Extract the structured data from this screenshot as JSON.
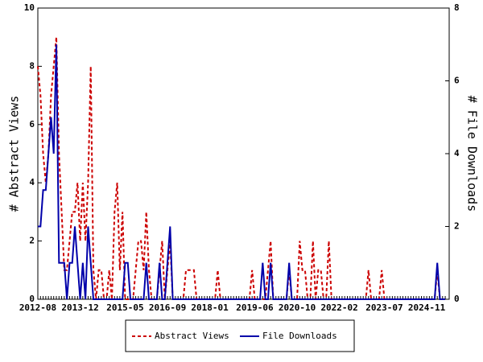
{
  "chart_data": {
    "type": "line",
    "ylabel": "# Abstract Views",
    "y2label": "# File Downloads",
    "categories": [
      "2012-08",
      null,
      null,
      null,
      null,
      null,
      null,
      null,
      null,
      null,
      null,
      null,
      null,
      null,
      null,
      null,
      "2013-12",
      null,
      null,
      null,
      null,
      null,
      null,
      null,
      null,
      null,
      null,
      null,
      null,
      null,
      null,
      null,
      null,
      "2015-05",
      null,
      null,
      null,
      null,
      null,
      null,
      null,
      null,
      null,
      null,
      null,
      null,
      null,
      null,
      null,
      "2016-09",
      null,
      null,
      null,
      null,
      null,
      null,
      null,
      null,
      null,
      null,
      null,
      null,
      null,
      null,
      null,
      "2018-01",
      null,
      null,
      null,
      null,
      null,
      null,
      null,
      null,
      null,
      null,
      null,
      null,
      null,
      null,
      null,
      null,
      "2019-06",
      null,
      null,
      null,
      null,
      null,
      null,
      null,
      null,
      null,
      null,
      null,
      null,
      null,
      null,
      null,
      "2020-10",
      null,
      null,
      null,
      null,
      null,
      null,
      null,
      null,
      null,
      null,
      null,
      null,
      null,
      null,
      null,
      "2022-02",
      null,
      null,
      null,
      null,
      null,
      null,
      null,
      null,
      null,
      null,
      null,
      null,
      null,
      null,
      null,
      null,
      "2023-07",
      null,
      null,
      null,
      null,
      null,
      null,
      null,
      null,
      null,
      null,
      null,
      null,
      null,
      null,
      null,
      "2024-11",
      null,
      null,
      null,
      null,
      null,
      null,
      null
    ],
    "series": [
      {
        "name": "Abstract Views",
        "color": "#cc0000",
        "dashed": true,
        "values": [
          8,
          7,
          5,
          4,
          5,
          7,
          8,
          9,
          5,
          3,
          1,
          1,
          2,
          3,
          3,
          4,
          2,
          4,
          2,
          4,
          8,
          1,
          0,
          1,
          1,
          0,
          0,
          1,
          0,
          3,
          4,
          1,
          3,
          0,
          0,
          0,
          0,
          1,
          2,
          2,
          1,
          3,
          1,
          0,
          0,
          0,
          1,
          2,
          0,
          1,
          2,
          0,
          0,
          0,
          0,
          0,
          1,
          1,
          1,
          1,
          0,
          0,
          0,
          0,
          0,
          0,
          0,
          0,
          1,
          0,
          0,
          0,
          0,
          0,
          0,
          0,
          0,
          0,
          0,
          0,
          0,
          1,
          0,
          0,
          0,
          0,
          0,
          1,
          2,
          0,
          0,
          0,
          0,
          0,
          0,
          1,
          0,
          0,
          0,
          2,
          1,
          1,
          0,
          0,
          2,
          0,
          1,
          1,
          0,
          0,
          2,
          0,
          0,
          0,
          0,
          0,
          0,
          0,
          0,
          0,
          0,
          0,
          0,
          0,
          0,
          1,
          0,
          0,
          0,
          0,
          1,
          0,
          0,
          0,
          0,
          0,
          0,
          0,
          0,
          0,
          0,
          0,
          0,
          0,
          0,
          0,
          0,
          0,
          0,
          0,
          0,
          1,
          0,
          0,
          0
        ]
      },
      {
        "name": "File Downloads",
        "color": "#0000aa",
        "dashed": false,
        "axis": "y2",
        "values": [
          2,
          2,
          3,
          3,
          4,
          5,
          4,
          7,
          1,
          1,
          1,
          0,
          1,
          1,
          2,
          1,
          0,
          1,
          0,
          2,
          1,
          0,
          0,
          0,
          0,
          0,
          0,
          0,
          0,
          0,
          0,
          0,
          0,
          1,
          1,
          0,
          0,
          0,
          0,
          0,
          0,
          1,
          0,
          0,
          0,
          0,
          1,
          0,
          0,
          1,
          2,
          0,
          0,
          0,
          0,
          0,
          0,
          0,
          0,
          0,
          0,
          0,
          0,
          0,
          0,
          0,
          0,
          0,
          0,
          0,
          0,
          0,
          0,
          0,
          0,
          0,
          0,
          0,
          0,
          0,
          0,
          0,
          0,
          0,
          0,
          1,
          0,
          0,
          1,
          0,
          0,
          0,
          0,
          0,
          0,
          1,
          0,
          0,
          0,
          0,
          0,
          0,
          0,
          0,
          0,
          0,
          0,
          0,
          0,
          0,
          0,
          0,
          0,
          0,
          0,
          0,
          0,
          0,
          0,
          0,
          0,
          0,
          0,
          0,
          0,
          0,
          0,
          0,
          0,
          0,
          0,
          0,
          0,
          0,
          0,
          0,
          0,
          0,
          0,
          0,
          0,
          0,
          0,
          0,
          0,
          0,
          0,
          0,
          0,
          0,
          0,
          1,
          0,
          0,
          0
        ]
      }
    ],
    "ylim": [
      0,
      10
    ],
    "yticks": [
      0,
      2,
      4,
      6,
      8,
      10
    ],
    "y2lim": [
      0,
      8
    ],
    "y2ticks": [
      0,
      2,
      4,
      6,
      8
    ],
    "grid": false,
    "legend": "bottom"
  }
}
